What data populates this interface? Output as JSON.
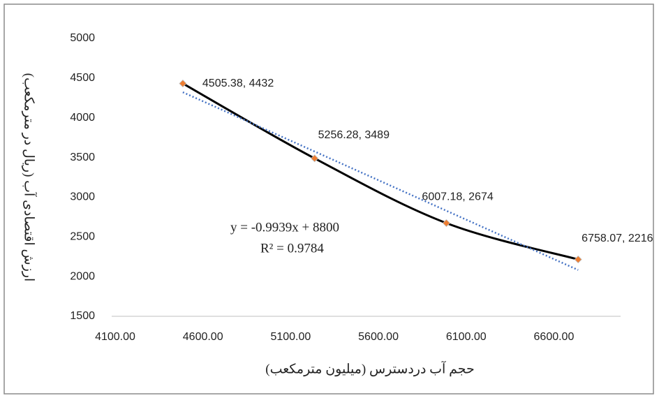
{
  "chart_data": {
    "type": "scatter",
    "x_label": "حجم آب دردسترس (میلیون مترمکعب)",
    "y_label": "ارزش اقتصادی آب (ریال در مترمکعب)",
    "series": [
      {
        "color": "#ed7d31",
        "line_color": "#000000",
        "x": [
          4505.38,
          5256.28,
          6007.18,
          6758.07
        ],
        "values": [
          4432,
          3489,
          2674,
          2216
        ],
        "value_labels": [
          "4505.38, 4432",
          "5256.28, 3489",
          "6007.18, 2674",
          "6758.07, 2216"
        ]
      }
    ],
    "trendline": {
      "slope": -0.9939,
      "intercept": 8800,
      "color": "#4472c4",
      "label": "y = -0.9939x + 8800",
      "r2_label": "R² = 0.9784"
    },
    "xlim": [
      4100,
      7000
    ],
    "xticks": [
      {
        "value": 4100,
        "label": "4100.00"
      },
      {
        "value": 4600,
        "label": "4600.00"
      },
      {
        "value": 5100,
        "label": "5100.00"
      },
      {
        "value": 5600,
        "label": "5600.00"
      },
      {
        "value": 6100,
        "label": "6100.00"
      },
      {
        "value": 6600,
        "label": "6600.00"
      }
    ],
    "ylim": [
      1500,
      5000
    ],
    "yticks": [
      1500,
      2000,
      2500,
      3000,
      3500,
      4000,
      4500,
      5000
    ],
    "grid": false
  }
}
